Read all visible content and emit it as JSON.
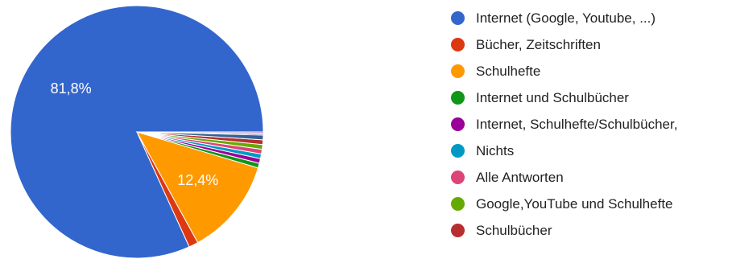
{
  "chart_data": {
    "type": "pie",
    "title": "",
    "legend_position": "right",
    "slices": [
      {
        "label": "Internet (Google, Youtube, ...)",
        "value": 81.8,
        "color": "#3366cc",
        "data_label": "81,8%"
      },
      {
        "label": "Bücher, Zeitschriften",
        "value": 1.2,
        "color": "#dc3912",
        "data_label": ""
      },
      {
        "label": "Schulhefte",
        "value": 12.4,
        "color": "#ff9900",
        "data_label": "12,4%"
      },
      {
        "label": "Internet und Schulbücher",
        "value": 0.6,
        "color": "#109618",
        "data_label": ""
      },
      {
        "label": "Internet, Schulhefte/Schulbücher,",
        "value": 0.6,
        "color": "#990099",
        "data_label": ""
      },
      {
        "label": "Nichts",
        "value": 0.6,
        "color": "#0099c6",
        "data_label": ""
      },
      {
        "label": "Alle Antworten",
        "value": 0.6,
        "color": "#dd4477",
        "data_label": ""
      },
      {
        "label": "Google,YouTube und Schulhefte",
        "value": 0.6,
        "color": "#66aa00",
        "data_label": ""
      },
      {
        "label": "Schulbücher",
        "value": 0.6,
        "color": "#b82e2e",
        "data_label": ""
      },
      {
        "label": "",
        "value": 0.6,
        "color": "#316395",
        "data_label": ""
      },
      {
        "label": "",
        "value": 0.1,
        "color": "#994499",
        "data_label": ""
      },
      {
        "label": "",
        "value": 0.1,
        "color": "#22aa99",
        "data_label": ""
      },
      {
        "label": "",
        "value": 0.1,
        "color": "#aaaa11",
        "data_label": ""
      },
      {
        "label": "",
        "value": 0.1,
        "color": "#6633cc",
        "data_label": ""
      }
    ]
  }
}
